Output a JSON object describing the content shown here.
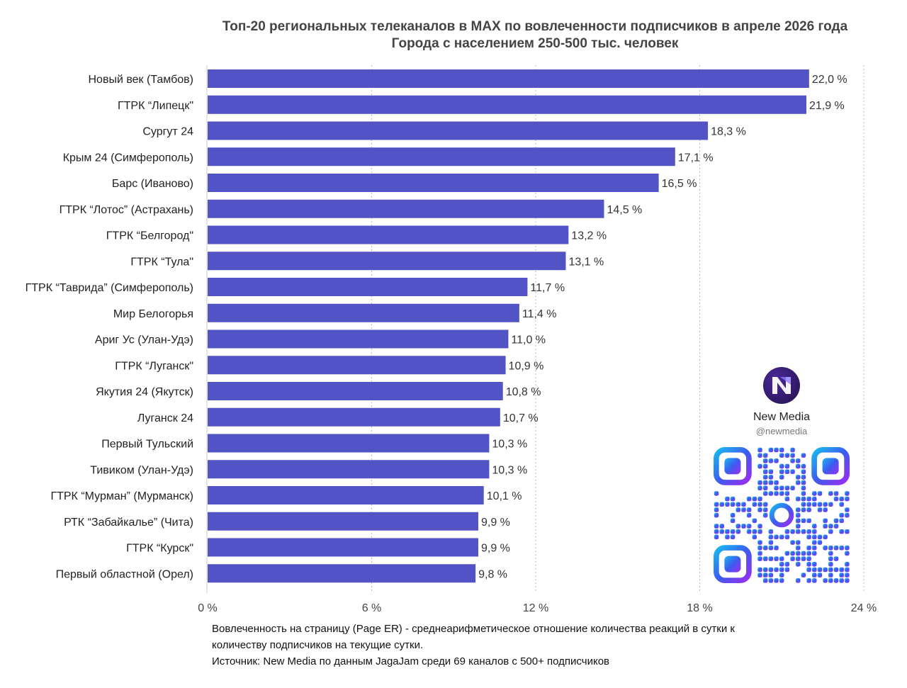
{
  "title": {
    "line1": "Топ-20 региональных телеканалов в MAX по вовлеченности подписчиков в апреле 2026 года",
    "line2": "Города с населением 250-500 тыс. человек"
  },
  "chart_data": {
    "type": "bar",
    "orientation": "horizontal",
    "categories": [
      "Новый век (Тамбов)",
      "ГТРК “Липецк\"",
      "Сургут 24",
      "Крым 24 (Симферополь)",
      "Барс (Иваново)",
      "ГТРК “Лотос” (Астрахань)",
      "ГТРК “Белгород\"",
      "ГТРК “Тула\"",
      "ГТРК “Таврида” (Симферополь)",
      "Мир Белогорья",
      "Ариг Ус (Улан-Удэ)",
      "ГТРК “Луганск\"",
      "Якутия 24 (Якутск)",
      "Луганск 24",
      "Первый Тульский",
      "Тивиком (Улан-Удэ)",
      "ГТРК “Мурман” (Мурманск)",
      "РТК “Забайкалье” (Чита)",
      "ГТРК “Курск\"",
      "Первый областной (Орел)"
    ],
    "values": [
      22.0,
      21.9,
      18.3,
      17.1,
      16.5,
      14.5,
      13.2,
      13.1,
      11.7,
      11.4,
      11.0,
      10.9,
      10.8,
      10.7,
      10.3,
      10.3,
      10.1,
      9.9,
      9.9,
      9.8
    ],
    "value_labels": [
      "22,0 %",
      "21,9 %",
      "18,3 %",
      "17,1 %",
      "16,5 %",
      "14,5 %",
      "13,2 %",
      "13,1 %",
      "11,7 %",
      "11,4 %",
      "11,0 %",
      "10,9 %",
      "10,8 %",
      "10,7 %",
      "10,3 %",
      "10,3 %",
      "10,1 %",
      "9,9 %",
      "9,9 %",
      "9,8 %"
    ],
    "xlim": [
      0,
      24
    ],
    "x_ticks": [
      0,
      6,
      12,
      18,
      24
    ],
    "x_tick_labels": [
      "0 %",
      "6 %",
      "12 %",
      "18 %",
      "24 %"
    ],
    "grid": "vertical-dotted",
    "bar_color": "#5253C4"
  },
  "footnote": {
    "line1": "Вовлеченность на страницу (Page ER) - среднеарифметическое отношение количества реакций в сутки к",
    "line2": "количеству подписчиков на текущие сутки.",
    "line3": "Источник: New Media по данным JagaJam среди 69 каналов с 500+ подписчиков"
  },
  "brand": {
    "name": "New Media",
    "handle": "@newmedia",
    "logo_text": "New Media",
    "logo_icon": "new-media-logo-icon",
    "qr_icon": "qr-code-icon"
  }
}
